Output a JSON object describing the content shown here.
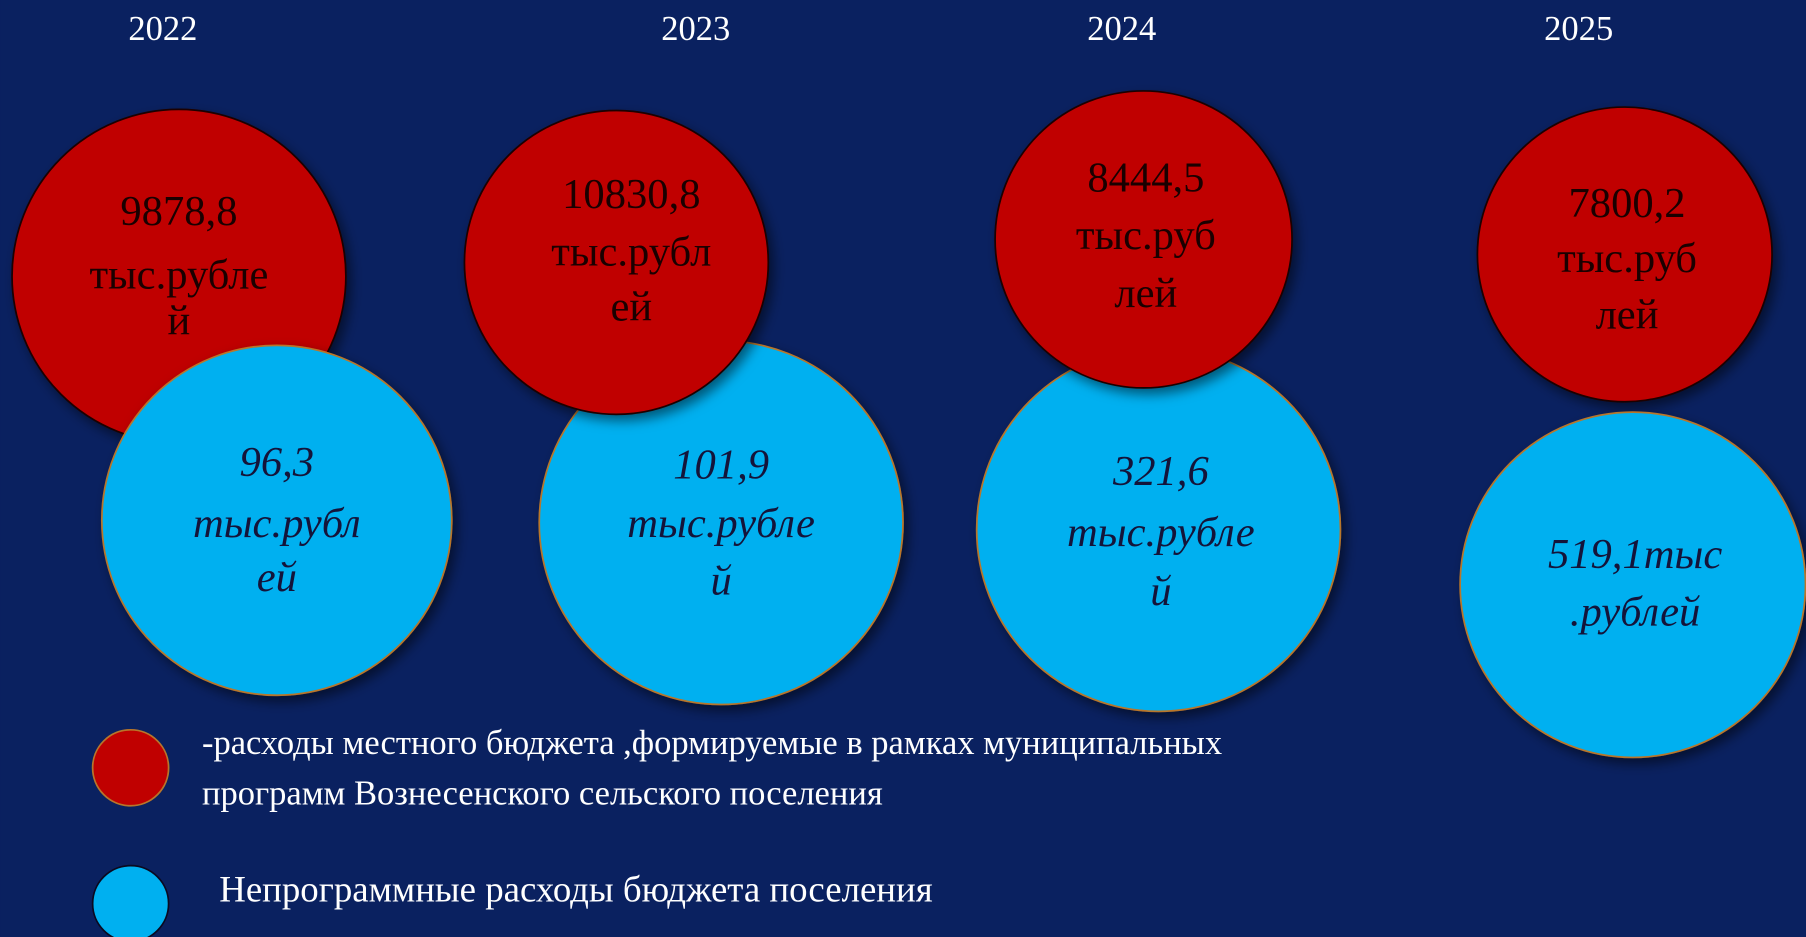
{
  "years": [
    {
      "year": "2022",
      "program": [
        "9878,8",
        "тыс.рубле",
        "й"
      ],
      "nonprogram": [
        "96,3",
        "тыс.рубл",
        "ей"
      ]
    },
    {
      "year": "2023",
      "program": [
        "10830,8",
        "тыс.рубл",
        "ей"
      ],
      "nonprogram": [
        "101,9",
        "тыс.рубле",
        "й"
      ]
    },
    {
      "year": "2024",
      "program": [
        "8444,5",
        "тыс.руб",
        "лей"
      ],
      "nonprogram": [
        "321,6",
        "тыс.рубле",
        "й"
      ]
    },
    {
      "year": "2025",
      "program": [
        "7800,2",
        "тыс.руб",
        "лей"
      ],
      "nonprogram": [
        "519,1тыс",
        ".рублей"
      ]
    }
  ],
  "legend": {
    "program": [
      "-расходы местного бюджета ,формируемые в рамках муниципальных",
      "программ  Вознесенского сельского поселения"
    ],
    "nonprogram": "Непрограммные расходы бюджета поселения"
  }
}
